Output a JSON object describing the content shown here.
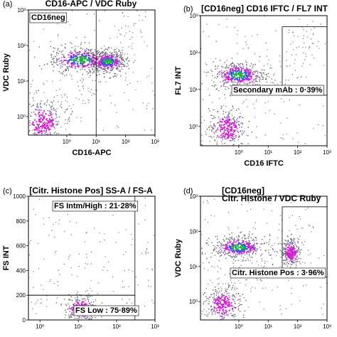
{
  "chart_data": [
    {
      "type": "scatter",
      "panel_label": "(a)",
      "title": "CD16-APC / VDC Ruby",
      "xlabel": "CD16-APC",
      "ylabel": "VDC Ruby",
      "xscale": "log",
      "yscale": "log",
      "xlim": [
        0.05,
        1000
      ],
      "ylim": [
        0.3,
        1000
      ],
      "xticks": [
        {
          "v": 1,
          "label": "10⁰"
        },
        {
          "v": 10,
          "label": "10¹"
        },
        {
          "v": 100,
          "label": "10²"
        },
        {
          "v": 1000,
          "label": "10³"
        }
      ],
      "yticks": [
        {
          "v": 1,
          "label": "10⁰"
        },
        {
          "v": 10,
          "label": "10¹"
        },
        {
          "v": 100,
          "label": "10²"
        },
        {
          "v": 1000,
          "label": "10³"
        }
      ],
      "gates": [
        {
          "label": "CD16neg",
          "x": [
            0.05,
            10
          ],
          "y": [
            0.3,
            1000
          ]
        }
      ],
      "populations": [
        {
          "name": "",
          "cx": 3,
          "cy": 40,
          "sx": 0.55,
          "sy": 0.2,
          "peak": true
        },
        {
          "name": "",
          "cx": 25,
          "cy": 35,
          "sx": 0.3,
          "sy": 0.15,
          "peak": true
        },
        {
          "name": "",
          "cx": 0.15,
          "cy": 0.7,
          "sx": 0.35,
          "sy": 0.3,
          "peak": false
        }
      ]
    },
    {
      "type": "scatter",
      "panel_label": "(b)",
      "title": "[CD16neg] CD16 IFTC / FL7 INT",
      "xlabel": "CD16 IFTC",
      "ylabel": "FL7 INT",
      "xscale": "log",
      "yscale": "log",
      "xlim": [
        0.05,
        1000
      ],
      "ylim": [
        0.3,
        1000
      ],
      "xticks": [
        {
          "v": 1,
          "label": "10⁰"
        },
        {
          "v": 10,
          "label": "10¹"
        },
        {
          "v": 100,
          "label": "10²"
        },
        {
          "v": 1000,
          "label": "10³"
        }
      ],
      "yticks": [
        {
          "v": 1,
          "label": "10⁰"
        },
        {
          "v": 10,
          "label": "10¹"
        },
        {
          "v": 100,
          "label": "10²"
        },
        {
          "v": 1000,
          "label": "10³"
        }
      ],
      "gates": [
        {
          "label": "Secondary mAb : 0·39%",
          "x": [
            30,
            1000
          ],
          "y": [
            7,
            500
          ]
        }
      ],
      "populations": [
        {
          "name": "",
          "cx": 1,
          "cy": 25,
          "sx": 0.45,
          "sy": 0.18,
          "peak": true
        },
        {
          "name": "",
          "cx": 0.4,
          "cy": 0.9,
          "sx": 0.3,
          "sy": 0.25,
          "peak": false
        }
      ]
    },
    {
      "type": "scatter",
      "panel_label": "(c)",
      "title": "[Citr. Histone Pos] SS-A / FS-A",
      "xlabel": "",
      "ylabel": "FS INT",
      "xscale": "log",
      "yscale": "linear",
      "xlim": [
        0.5,
        1000
      ],
      "ylim": [
        0,
        1000
      ],
      "xticks": [
        {
          "v": 1,
          "label": "10⁰"
        },
        {
          "v": 10,
          "label": "10¹"
        },
        {
          "v": 100,
          "label": "10²"
        },
        {
          "v": 1000,
          "label": "10³"
        }
      ],
      "yticks": [
        {
          "v": 0,
          "label": "0"
        },
        {
          "v": 200,
          "label": "200"
        },
        {
          "v": 400,
          "label": "400"
        },
        {
          "v": 600,
          "label": "600"
        },
        {
          "v": 800,
          "label": "800"
        },
        {
          "v": 1000,
          "label": "1000"
        }
      ],
      "gates": [
        {
          "label": "FS Intm/High : 21·28%",
          "x": [
            0.5,
            300
          ],
          "y": [
            200,
            1000
          ]
        },
        {
          "label": "FS Low : 75·89%",
          "x": [
            0.5,
            300
          ],
          "y": [
            0,
            200
          ]
        }
      ],
      "populations": [
        {
          "name": "",
          "cx": 12,
          "cy": 90,
          "sx": 0.22,
          "sy": 55,
          "peak": false
        }
      ]
    },
    {
      "type": "scatter",
      "panel_label": "(d)",
      "title": "[CD16neg]\nCitr. Histone / VDC Ruby",
      "xlabel": "",
      "ylabel": "VDC Ruby",
      "xscale": "log",
      "yscale": "log",
      "xlim": [
        0.05,
        1000
      ],
      "ylim": [
        0.3,
        1000
      ],
      "xticks": [
        {
          "v": 1,
          "label": "10⁰"
        },
        {
          "v": 10,
          "label": "10¹"
        },
        {
          "v": 100,
          "label": "10²"
        },
        {
          "v": 1000,
          "label": "10³"
        }
      ],
      "yticks": [
        {
          "v": 1,
          "label": "10⁰"
        },
        {
          "v": 10,
          "label": "10¹"
        },
        {
          "v": 100,
          "label": "10²"
        },
        {
          "v": 1000,
          "label": "10³"
        }
      ],
      "gates": [
        {
          "label": "Citr. Histone Pos : 3·96%",
          "x": [
            30,
            1000
          ],
          "y": [
            5,
            500
          ]
        }
      ],
      "populations": [
        {
          "name": "",
          "cx": 1,
          "cy": 35,
          "sx": 0.45,
          "sy": 0.16,
          "peak": true
        },
        {
          "name": "",
          "cx": 0.3,
          "cy": 0.8,
          "sx": 0.3,
          "sy": 0.25,
          "peak": false
        },
        {
          "name": "",
          "cx": 60,
          "cy": 25,
          "sx": 0.15,
          "sy": 0.2,
          "peak": false
        }
      ]
    }
  ]
}
